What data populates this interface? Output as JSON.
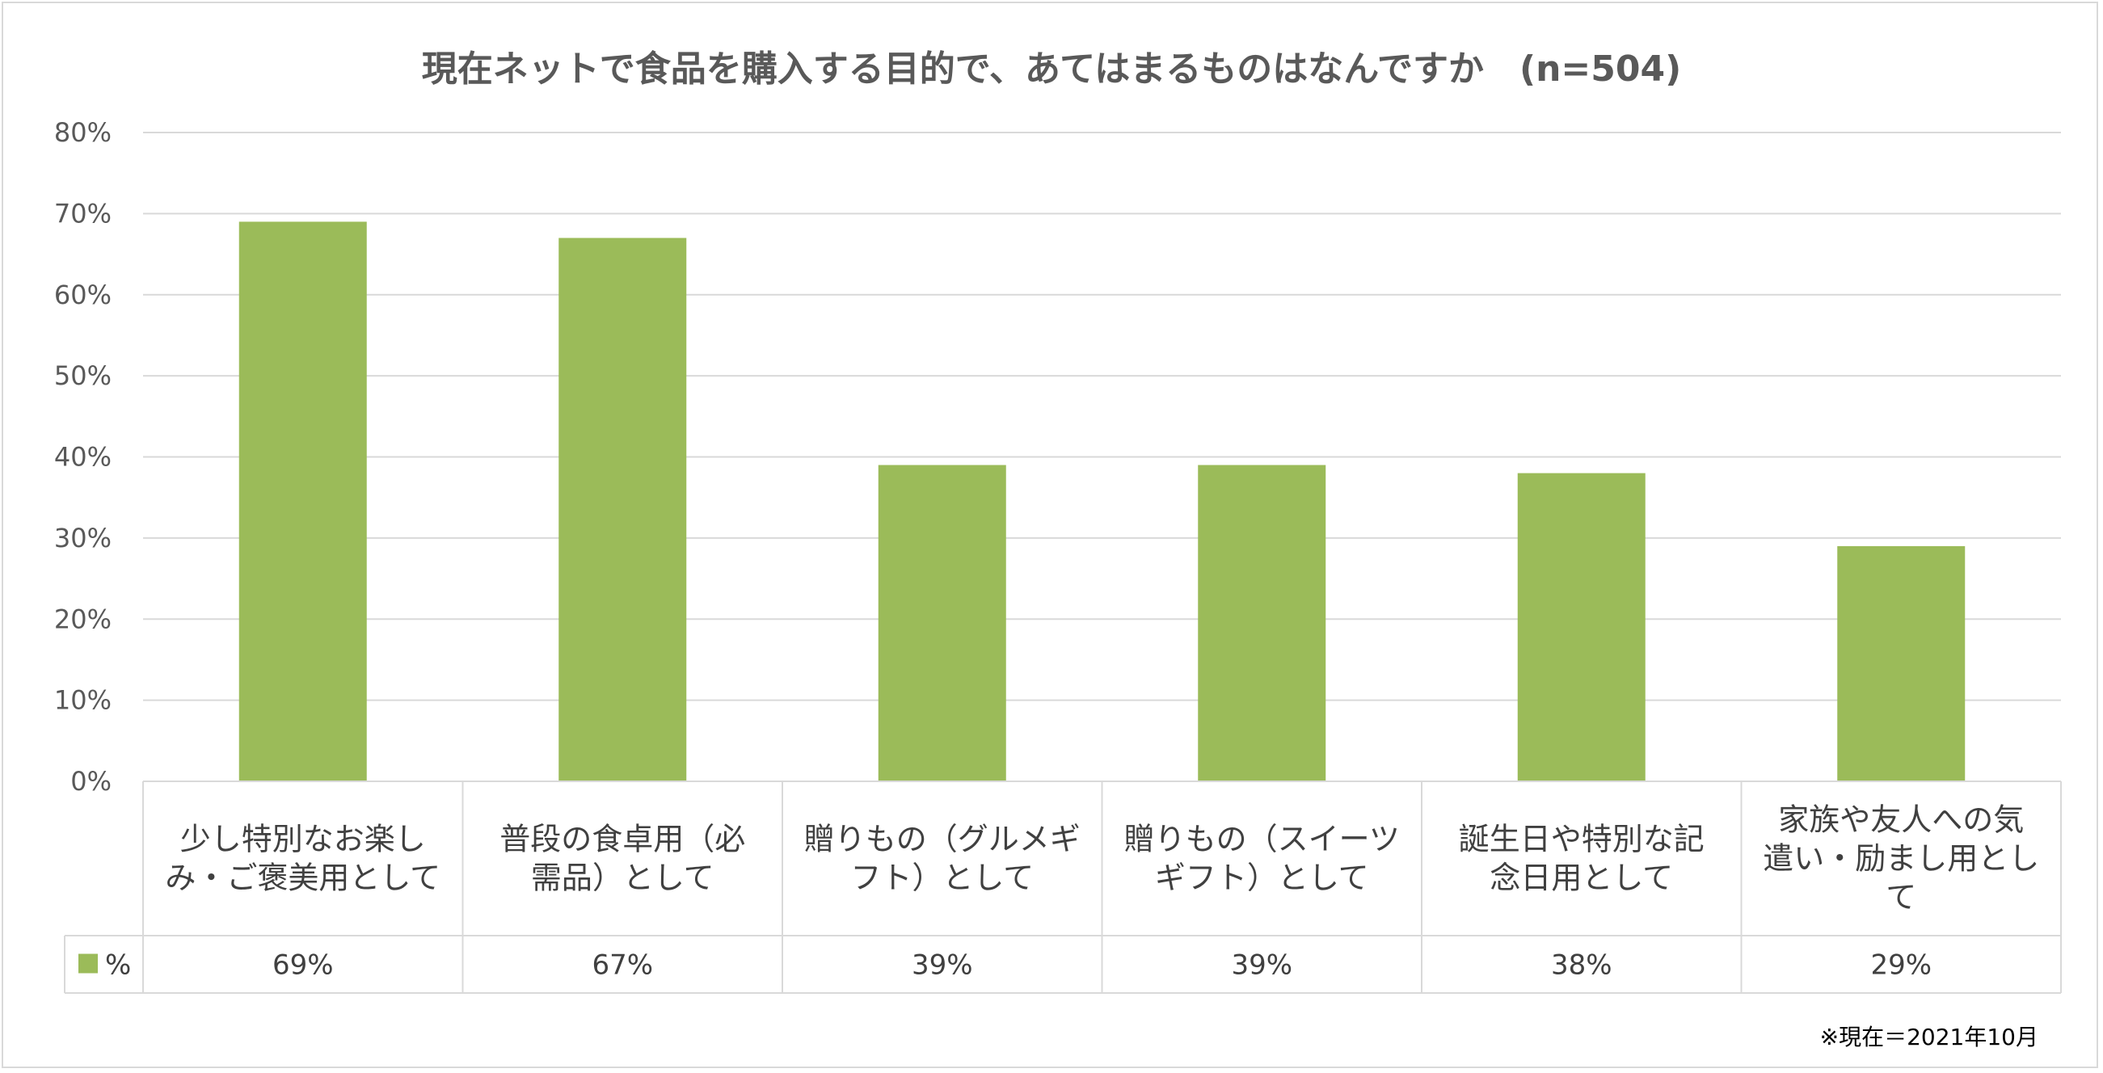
{
  "chart_data": {
    "type": "bar",
    "title": "現在ネットで食品を購入する目的で、あてはまるものはなんですか　(n=504)",
    "categories": [
      [
        "少し特別なお楽し",
        "み・ご褒美用として"
      ],
      [
        "普段の食卓用（必",
        "需品）として"
      ],
      [
        "贈りもの（グルメギ",
        "フト）として"
      ],
      [
        "贈りもの（スイーツ",
        "ギフト）として"
      ],
      [
        "誕生日や特別な記",
        "念日用として"
      ],
      [
        "家族や友人への気",
        "遣い・励まし用とし",
        "て"
      ]
    ],
    "series": [
      {
        "name": "%",
        "values": [
          69,
          67,
          39,
          39,
          38,
          29
        ],
        "value_labels": [
          "69%",
          "67%",
          "39%",
          "39%",
          "38%",
          "29%"
        ],
        "color": "#9bbb59"
      }
    ],
    "y_ticks": [
      "0%",
      "10%",
      "20%",
      "30%",
      "40%",
      "50%",
      "60%",
      "70%",
      "80%"
    ],
    "ylim": [
      0,
      80
    ],
    "grid": true,
    "data_table": true,
    "footnote": "※現在＝2021年10月"
  }
}
